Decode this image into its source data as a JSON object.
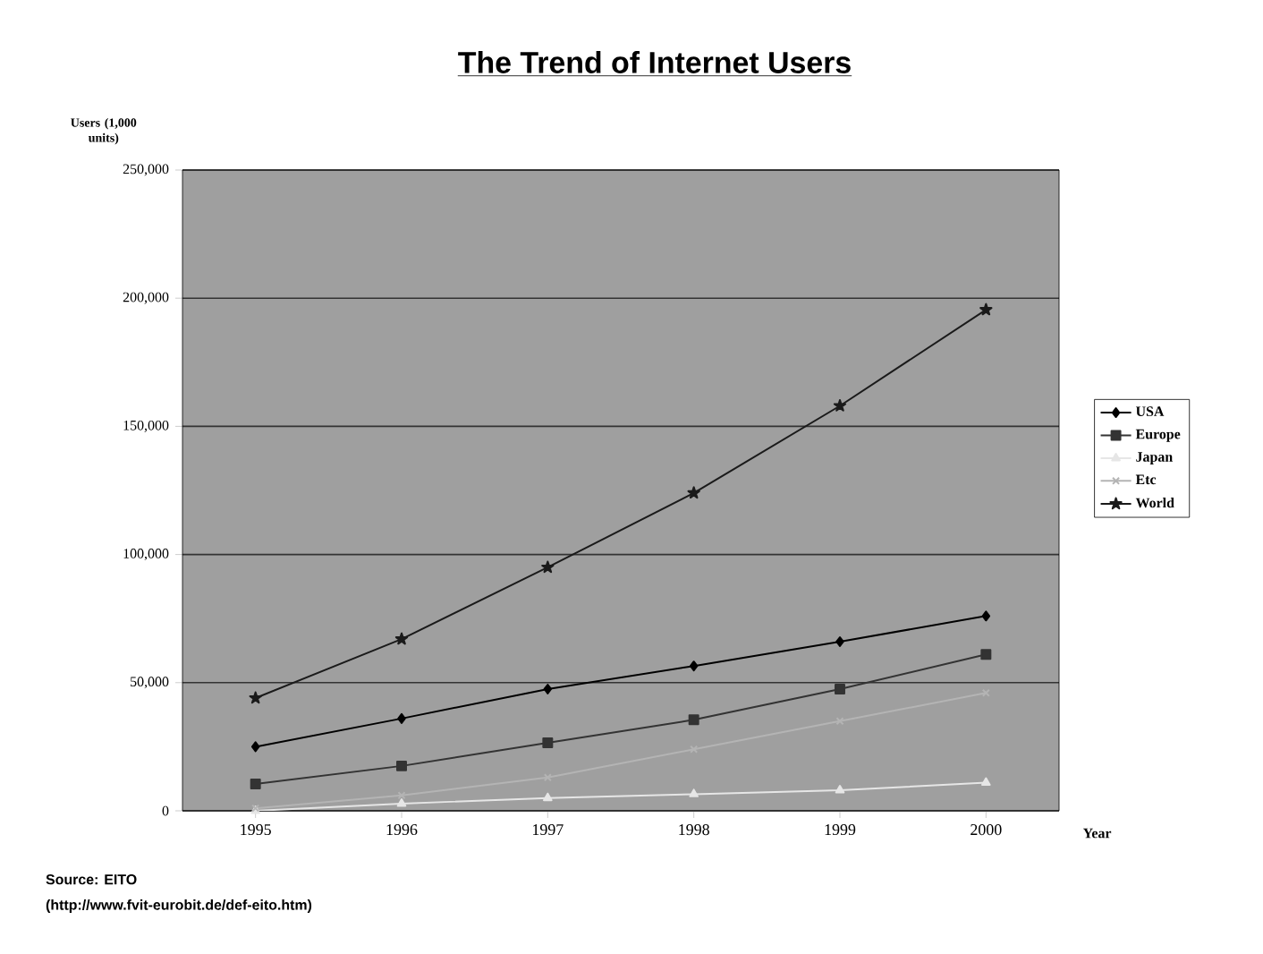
{
  "chart_data": {
    "type": "line",
    "title": "The Trend of Internet Users",
    "ylabel": "Users (1,000 units)",
    "xlabel": "Year",
    "categories": [
      "1995",
      "1996",
      "1997",
      "1998",
      "1999",
      "2000"
    ],
    "series": [
      {
        "name": "USA",
        "color": "#000000",
        "marker": "diamond",
        "values": [
          25000,
          36000,
          47500,
          56500,
          66000,
          76000
        ]
      },
      {
        "name": "Europe",
        "color": "#333333",
        "marker": "square",
        "values": [
          10500,
          17500,
          26500,
          35500,
          47500,
          61000
        ]
      },
      {
        "name": "Japan",
        "color": "#e6e6e6",
        "marker": "triangle",
        "values": [
          0,
          2800,
          5000,
          6500,
          8000,
          11000
        ]
      },
      {
        "name": "Etc",
        "color": "#b4b4b4",
        "marker": "cross",
        "values": [
          1000,
          6000,
          13000,
          24000,
          35000,
          46000
        ]
      },
      {
        "name": "World",
        "color": "#1a1a1a",
        "marker": "star",
        "values": [
          44000,
          67000,
          95000,
          124000,
          158000,
          195500
        ]
      }
    ],
    "ylim": [
      0,
      250000
    ],
    "yticks": [
      {
        "value": 0,
        "label": "0"
      },
      {
        "value": 50000,
        "label": "50,000"
      },
      {
        "value": 100000,
        "label": "100,000"
      },
      {
        "value": 150000,
        "label": "150,000"
      },
      {
        "value": 200000,
        "label": "200,000"
      },
      {
        "value": 250000,
        "label": "250,000"
      }
    ],
    "grid": "y",
    "legend": "right",
    "annotations": [
      "Source: EITO",
      "(http://www.fvit-eurobit.de/def-eito.htm)"
    ]
  }
}
